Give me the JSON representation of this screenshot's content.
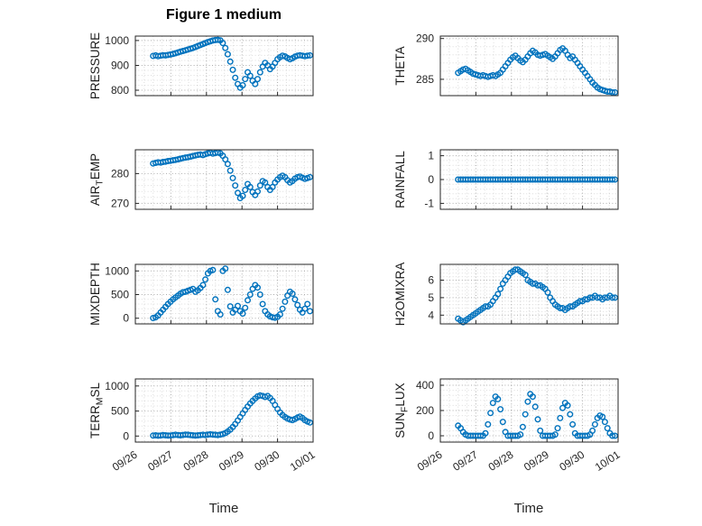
{
  "figure": {
    "title": "Figure 1 medium",
    "xlabel": "Time",
    "marker_color": "#0072BD",
    "axis_color": "#262626",
    "grid": {
      "x_minor_step": 0.25,
      "y_minor_divisions": 5
    }
  },
  "x_axis": {
    "lim": [
      26,
      31
    ],
    "ticks": [
      26,
      27,
      28,
      29,
      30,
      31
    ],
    "tick_labels": [
      "09/26",
      "09/27",
      "09/28",
      "09/29",
      "09/30",
      "10/01"
    ]
  },
  "chart_data": [
    {
      "type": "scatter",
      "name": "PRESSURE",
      "ylabel_parts": [
        {
          "t": "PRESSURE"
        }
      ],
      "ylim": [
        778,
        1018
      ],
      "yticks": [
        800,
        900,
        1000
      ],
      "x_start": 26.5,
      "x_step": 0.07,
      "values": [
        938,
        940,
        937,
        939,
        941,
        940,
        942,
        944,
        946,
        949,
        952,
        955,
        958,
        961,
        964,
        967,
        970,
        974,
        978,
        982,
        986,
        990,
        994,
        997,
        1000,
        1002,
        1003,
        1001,
        990,
        970,
        945,
        915,
        882,
        850,
        825,
        810,
        820,
        845,
        872,
        858,
        838,
        825,
        845,
        872,
        895,
        910,
        900,
        885,
        895,
        910,
        925,
        933,
        939,
        936,
        930,
        925,
        929,
        935,
        939,
        941,
        939,
        937,
        939,
        940
      ]
    },
    {
      "type": "scatter",
      "name": "THETA",
      "ylabel_parts": [
        {
          "t": "THETA"
        }
      ],
      "ylim": [
        283,
        290.3
      ],
      "yticks": [
        285,
        290
      ],
      "x_start": 26.5,
      "x_step": 0.07,
      "values": [
        285.8,
        286,
        286.2,
        286.3,
        286.1,
        285.9,
        285.7,
        285.6,
        285.5,
        285.4,
        285.5,
        285.4,
        285.3,
        285.4,
        285.5,
        285.4,
        285.6,
        285.8,
        286.2,
        286.6,
        287,
        287.4,
        287.7,
        287.9,
        287.6,
        287.3,
        287.1,
        287.4,
        287.8,
        288.2,
        288.5,
        288.3,
        288,
        287.9,
        288,
        288.1,
        287.9,
        287.7,
        287.5,
        287.8,
        288.2,
        288.6,
        288.8,
        288.5,
        288,
        287.6,
        287.8,
        287.4,
        287,
        286.6,
        286.2,
        285.8,
        285.4,
        285,
        284.6,
        284.3,
        284,
        283.8,
        283.7,
        283.6,
        283.5,
        283.5,
        283.4,
        283.4
      ]
    },
    {
      "type": "scatter",
      "name": "AIR_TEMP",
      "ylabel_parts": [
        {
          "t": "AIR"
        },
        {
          "t": "T",
          "sub": true
        },
        {
          "t": "EMP"
        }
      ],
      "ylim": [
        268,
        288
      ],
      "yticks": [
        270,
        280
      ],
      "x_start": 26.5,
      "x_step": 0.07,
      "values": [
        283.4,
        283.6,
        283.8,
        283.7,
        283.9,
        284,
        284.2,
        284.3,
        284.5,
        284.6,
        284.8,
        285,
        285.2,
        285.4,
        285.5,
        285.7,
        285.9,
        286.1,
        286.3,
        286.4,
        286.2,
        286.5,
        286.8,
        287,
        286.7,
        286.9,
        287.1,
        286.8,
        286,
        284.8,
        283.2,
        281,
        278.5,
        276,
        273.5,
        271.8,
        272.5,
        274.5,
        276.5,
        275.5,
        273.8,
        272.8,
        274,
        276,
        277.5,
        277,
        275.5,
        274.5,
        275.5,
        277,
        278,
        278.8,
        279.3,
        278.8,
        277.8,
        277,
        277.5,
        278.3,
        278.8,
        279,
        278.6,
        278.2,
        278.5,
        278.8
      ]
    },
    {
      "type": "scatter",
      "name": "RAINFALL",
      "ylabel_parts": [
        {
          "t": "RAINFALL"
        }
      ],
      "ylim": [
        -1.25,
        1.25
      ],
      "yticks": [
        -1,
        0,
        1
      ],
      "x_start": 26.5,
      "x_step": 0.07,
      "values": [
        0,
        0,
        0,
        0,
        0,
        0,
        0,
        0,
        0,
        0,
        0,
        0,
        0,
        0,
        0,
        0,
        0,
        0,
        0,
        0,
        0,
        0,
        0,
        0,
        0,
        0,
        0,
        0,
        0,
        0,
        0,
        0,
        0,
        0,
        0,
        0,
        0,
        0,
        0,
        0,
        0,
        0,
        0,
        0,
        0,
        0,
        0,
        0,
        0,
        0,
        0,
        0,
        0,
        0,
        0,
        0,
        0,
        0,
        0,
        0,
        0,
        0,
        0,
        0
      ]
    },
    {
      "type": "scatter",
      "name": "MIXDEPTH",
      "ylabel_parts": [
        {
          "t": "MIXDEPTH"
        }
      ],
      "ylim": [
        -120,
        1140
      ],
      "yticks": [
        0,
        500,
        1000
      ],
      "x_start": 26.5,
      "x_step": 0.07,
      "values": [
        5,
        20,
        60,
        120,
        180,
        240,
        300,
        350,
        400,
        440,
        480,
        520,
        550,
        560,
        580,
        600,
        620,
        560,
        590,
        640,
        700,
        820,
        950,
        1000,
        1020,
        400,
        150,
        80,
        1000,
        1050,
        600,
        250,
        120,
        180,
        260,
        150,
        100,
        220,
        380,
        500,
        620,
        700,
        650,
        500,
        300,
        150,
        80,
        40,
        20,
        10,
        30,
        80,
        200,
        350,
        480,
        560,
        520,
        400,
        280,
        180,
        120,
        200,
        300,
        150
      ]
    },
    {
      "type": "scatter",
      "name": "H2OMIXRA",
      "ylabel_parts": [
        {
          "t": "H2OMIXRA"
        }
      ],
      "ylim": [
        3.5,
        6.9
      ],
      "yticks": [
        4,
        5,
        6
      ],
      "x_start": 26.5,
      "x_step": 0.07,
      "values": [
        3.8,
        3.7,
        3.6,
        3.7,
        3.8,
        3.9,
        4,
        4.1,
        4.2,
        4.3,
        4.4,
        4.5,
        4.5,
        4.6,
        4.8,
        5,
        5.2,
        5.5,
        5.8,
        6,
        6.2,
        6.4,
        6.5,
        6.6,
        6.6,
        6.5,
        6.4,
        6.3,
        6,
        5.9,
        5.8,
        5.8,
        5.7,
        5.7,
        5.6,
        5.5,
        5.3,
        5,
        4.8,
        4.6,
        4.5,
        4.4,
        4.4,
        4.3,
        4.4,
        4.5,
        4.5,
        4.6,
        4.7,
        4.8,
        4.8,
        4.9,
        4.9,
        5,
        5,
        5.1,
        5,
        5,
        4.9,
        5,
        5,
        5.1,
        5,
        5
      ]
    },
    {
      "type": "scatter",
      "name": "TERR_MSL",
      "ylabel_parts": [
        {
          "t": "TERR"
        },
        {
          "t": "M",
          "sub": true
        },
        {
          "t": "SL"
        }
      ],
      "ylim": [
        -120,
        1140
      ],
      "yticks": [
        0,
        500,
        1000
      ],
      "x_start": 26.5,
      "x_step": 0.07,
      "values": [
        10,
        15,
        8,
        12,
        20,
        15,
        10,
        12,
        18,
        25,
        20,
        15,
        22,
        30,
        25,
        20,
        15,
        10,
        15,
        20,
        25,
        20,
        30,
        35,
        30,
        25,
        20,
        30,
        40,
        60,
        90,
        130,
        180,
        240,
        310,
        380,
        450,
        520,
        590,
        650,
        700,
        750,
        790,
        810,
        800,
        780,
        800,
        760,
        700,
        620,
        540,
        470,
        420,
        380,
        350,
        330,
        320,
        340,
        370,
        390,
        360,
        320,
        290,
        270
      ]
    },
    {
      "type": "scatter",
      "name": "SUN_FLUX",
      "ylabel_parts": [
        {
          "t": "SUN"
        },
        {
          "t": "F",
          "sub": true
        },
        {
          "t": "LUX"
        }
      ],
      "ylim": [
        -50,
        450
      ],
      "yticks": [
        0,
        200,
        400
      ],
      "x_start": 26.5,
      "x_step": 0.07,
      "values": [
        80,
        60,
        30,
        10,
        0,
        0,
        0,
        0,
        0,
        0,
        0,
        20,
        90,
        180,
        260,
        310,
        290,
        210,
        110,
        30,
        0,
        0,
        0,
        0,
        0,
        10,
        70,
        170,
        270,
        330,
        310,
        230,
        130,
        40,
        0,
        0,
        0,
        0,
        0,
        10,
        60,
        140,
        220,
        260,
        240,
        170,
        90,
        20,
        0,
        0,
        0,
        0,
        0,
        10,
        40,
        90,
        140,
        160,
        150,
        110,
        60,
        20,
        0,
        0
      ]
    }
  ]
}
